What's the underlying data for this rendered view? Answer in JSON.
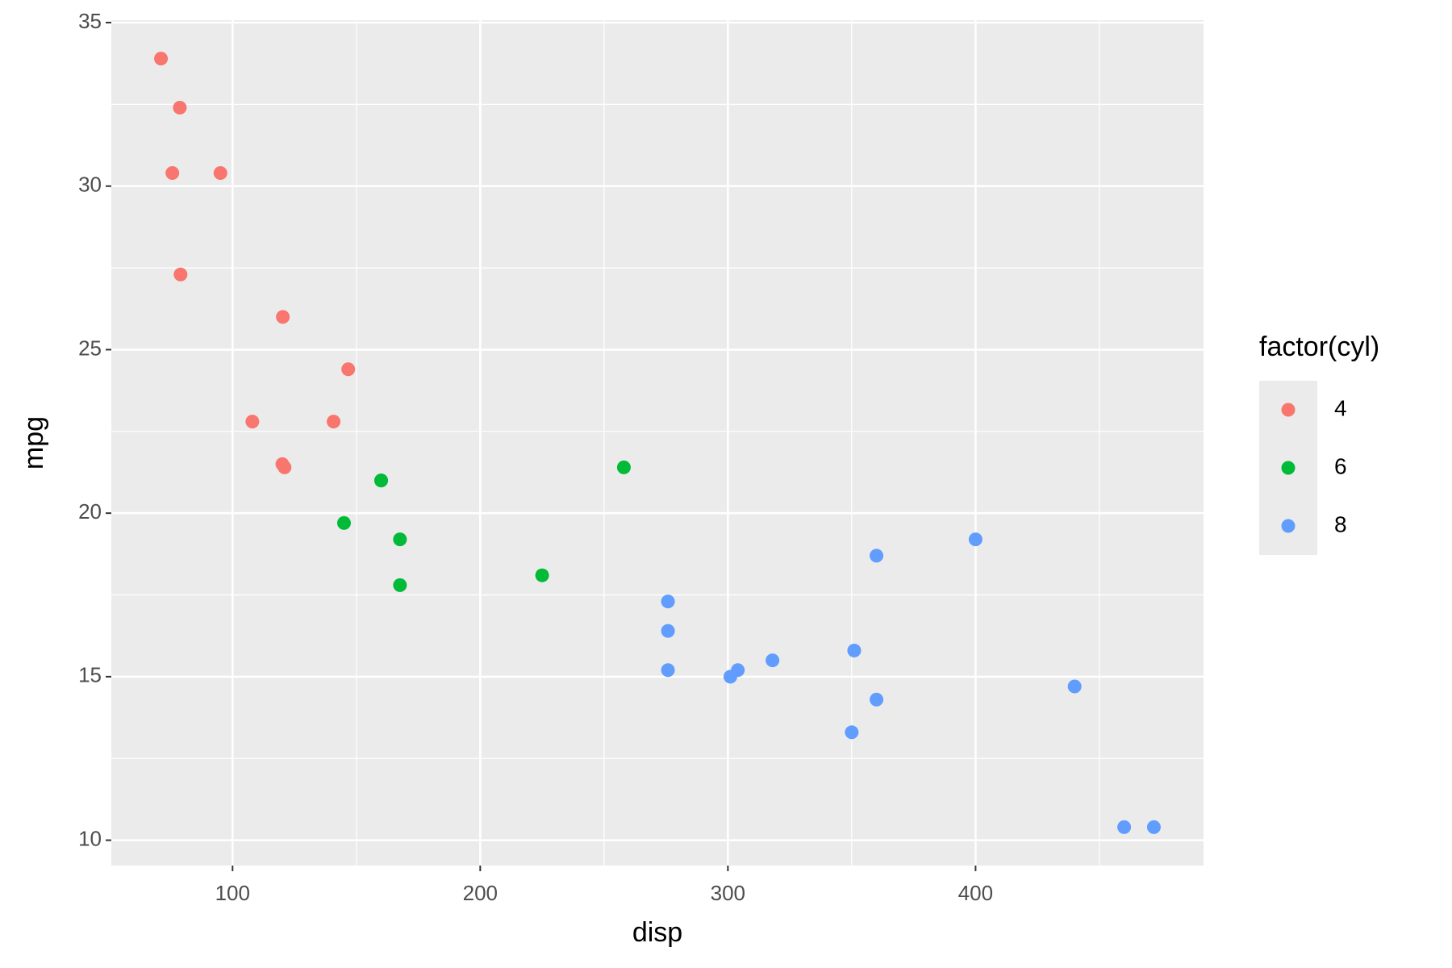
{
  "chart_data": {
    "type": "scatter",
    "x_label": "disp",
    "y_label": "mpg",
    "legend_title": "factor(cyl)",
    "legend_position": "right",
    "xlim": [
      51.05,
      492.05
    ],
    "ylim": [
      9.225,
      35.075
    ],
    "xticks": [
      100,
      200,
      300,
      400
    ],
    "yticks": [
      10,
      15,
      20,
      25,
      30,
      35
    ],
    "grid": true,
    "minor_grid": true,
    "panel_color": "#ebebeb",
    "series": [
      {
        "name": "4",
        "color": "#F8766D",
        "x": [
          108,
          146.7,
          140.8,
          78.7,
          75.7,
          71.1,
          120.1,
          79,
          120.3,
          95.1,
          121
        ],
        "values": [
          22.8,
          24.4,
          22.8,
          32.4,
          30.4,
          33.9,
          21.5,
          27.3,
          26,
          30.4,
          21.4
        ]
      },
      {
        "name": "6",
        "color": "#00BA38",
        "x": [
          160,
          160,
          258,
          225,
          167.6,
          167.6,
          145
        ],
        "values": [
          21,
          21,
          21.4,
          18.1,
          19.2,
          17.8,
          19.7
        ]
      },
      {
        "name": "8",
        "color": "#619CFF",
        "x": [
          360,
          360,
          275.8,
          275.8,
          275.8,
          472,
          460,
          440,
          318,
          304,
          350,
          400,
          351,
          301
        ],
        "values": [
          18.7,
          14.3,
          16.4,
          17.3,
          15.2,
          10.4,
          10.4,
          14.7,
          15.5,
          15.2,
          13.3,
          19.2,
          15.8,
          15
        ]
      }
    ]
  }
}
